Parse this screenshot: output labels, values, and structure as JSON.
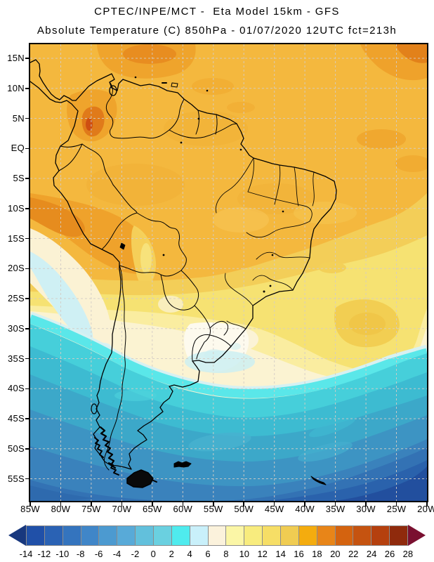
{
  "header": {
    "title": "CPTEC/INPE/MCT -  Eta Model 15km - GFS",
    "subtitle": "Absolute Temperature (C) 850hPa - 01/07/2020 12UTC fct=213h"
  },
  "map": {
    "lat_labels": [
      "15N",
      "10N",
      "5N",
      "EQ",
      "5S",
      "10S",
      "15S",
      "20S",
      "25S",
      "30S",
      "35S",
      "40S",
      "45S",
      "50S",
      "55S"
    ],
    "lon_labels": [
      "85W",
      "80W",
      "75W",
      "70W",
      "65W",
      "60W",
      "55W",
      "50W",
      "45W",
      "40W",
      "35W",
      "30W",
      "25W",
      "20W"
    ],
    "grid_color": "#d4cdc6",
    "border_color": "#000000"
  },
  "colorbar": {
    "unit": "C",
    "labels": [
      "-14",
      "-12",
      "-10",
      "-8",
      "-6",
      "-4",
      "-2",
      "0",
      "2",
      "4",
      "6",
      "8",
      "10",
      "12",
      "14",
      "16",
      "18",
      "20",
      "22",
      "24",
      "26",
      "28"
    ],
    "cell_colors": [
      "#2050A8",
      "#2A62B4",
      "#3474BE",
      "#4086C8",
      "#4C9AD0",
      "#58AAD8",
      "#62C0DC",
      "#6AD0E0",
      "#4FEBEE",
      "#C9F0FA",
      "#FBF2DC",
      "#FBF6A6",
      "#F8EC7E",
      "#F6DE66",
      "#F0CC52",
      "#F4AC0E",
      "#E88518",
      "#D4630F",
      "#C55310",
      "#B5400E",
      "#8F2A0C"
    ],
    "left_arrow_color": "#18387E",
    "right_arrow_color": "#7A1030"
  },
  "field_palette": {
    "warm_base": "#F4B83E",
    "warm_patch": "#EFA42C",
    "hot_patch": "#E2811A",
    "hottest_spot": "#CE4E12",
    "yellow_band": "#F6E272",
    "cream_band": "#FBF3D2",
    "cold_sliver": "#5AE7E9",
    "cold_deep": "#224F9E"
  }
}
